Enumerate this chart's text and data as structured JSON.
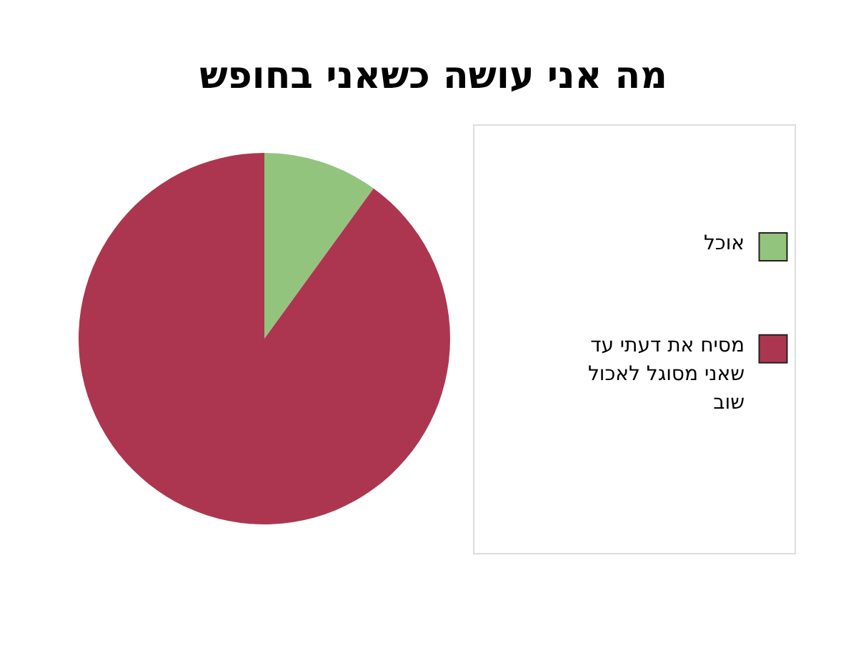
{
  "chart_data": {
    "type": "pie",
    "title": "מה אני עושה כשאני בחופש",
    "categories": [
      "אוכל",
      "מסיח את דעתי עד שאני מסוגל לאכול שוב"
    ],
    "values": [
      10,
      90
    ],
    "colors": [
      "#93c47d",
      "#ac3650"
    ],
    "legend": "right"
  }
}
